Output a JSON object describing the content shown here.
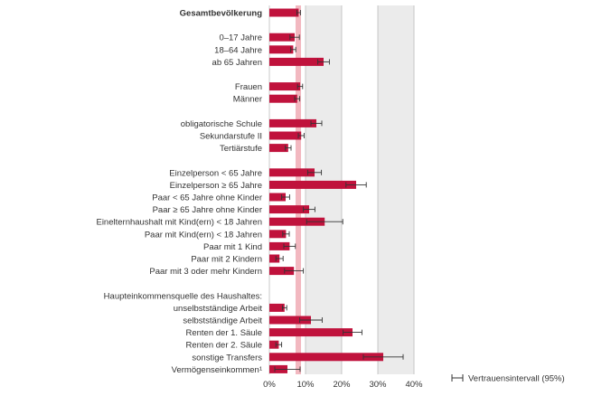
{
  "chart_data": {
    "type": "bar",
    "orientation": "horizontal",
    "unit": "%",
    "xlim": [
      0,
      40
    ],
    "x_ticks": [
      "0%",
      "10%",
      "20%",
      "30%",
      "40%"
    ],
    "x_tick_values": [
      0,
      10,
      20,
      30,
      40
    ],
    "reference_line_value": 8,
    "grid": true,
    "bar_color": "#c0123c",
    "reference_band_color": "#f2b8c0",
    "background_band_color": "#ebebeb",
    "legend": {
      "label": "Vertrauensintervall (95%)",
      "placement": "bottom-right"
    },
    "rows": [
      {
        "kind": "bar",
        "label": "Gesamtbevölkerung",
        "bold": true,
        "value": 8.1,
        "ci": [
          7.6,
          8.6
        ]
      },
      {
        "kind": "gap"
      },
      {
        "kind": "bar",
        "label": "0–17 Jahre",
        "value": 7.0,
        "ci": [
          5.7,
          8.3
        ]
      },
      {
        "kind": "bar",
        "label": "18–64 Jahre",
        "value": 6.6,
        "ci": [
          5.9,
          7.3
        ]
      },
      {
        "kind": "bar",
        "label": "ab 65 Jahren",
        "value": 15.0,
        "ci": [
          13.4,
          16.6
        ]
      },
      {
        "kind": "gap"
      },
      {
        "kind": "bar",
        "label": "Frauen",
        "value": 8.5,
        "ci": [
          7.8,
          9.2
        ]
      },
      {
        "kind": "bar",
        "label": "Männer",
        "value": 7.7,
        "ci": [
          7.0,
          8.4
        ]
      },
      {
        "kind": "gap"
      },
      {
        "kind": "bar",
        "label": "obligatorische Schule",
        "value": 13.0,
        "ci": [
          11.5,
          14.5
        ]
      },
      {
        "kind": "bar",
        "label": "Sekundarstufe II",
        "value": 8.8,
        "ci": [
          8.0,
          9.6
        ]
      },
      {
        "kind": "bar",
        "label": "Tertiärstufe",
        "value": 5.2,
        "ci": [
          4.4,
          6.0
        ]
      },
      {
        "kind": "gap"
      },
      {
        "kind": "bar",
        "label": "Einzelperson < 65 Jahre",
        "value": 12.5,
        "ci": [
          10.6,
          14.4
        ]
      },
      {
        "kind": "bar",
        "label": "Einzelperson ≥ 65 Jahre",
        "value": 24.0,
        "ci": [
          21.2,
          26.8
        ]
      },
      {
        "kind": "bar",
        "label": "Paar < 65 Jahre ohne Kinder",
        "value": 4.5,
        "ci": [
          3.4,
          5.6
        ]
      },
      {
        "kind": "bar",
        "label": "Paar ≥ 65 Jahre ohne Kinder",
        "value": 11.0,
        "ci": [
          9.4,
          12.6
        ]
      },
      {
        "kind": "bar",
        "label": "Einelternhaushalt mit Kind(ern) < 18 Jahren",
        "value": 15.3,
        "ci": [
          10.3,
          20.3
        ]
      },
      {
        "kind": "bar",
        "label": "Paar mit Kind(ern) < 18 Jahren",
        "value": 4.6,
        "ci": [
          3.7,
          5.5
        ]
      },
      {
        "kind": "bar",
        "label": "Paar mit 1 Kind",
        "value": 5.6,
        "ci": [
          4.0,
          7.2
        ]
      },
      {
        "kind": "bar",
        "label": "Paar mit 2 Kindern",
        "value": 2.8,
        "ci": [
          1.8,
          3.8
        ]
      },
      {
        "kind": "bar",
        "label": "Paar mit 3 oder mehr Kindern",
        "value": 6.8,
        "ci": [
          4.2,
          9.4
        ]
      },
      {
        "kind": "gap"
      },
      {
        "kind": "text",
        "label": "Haupteinkommensquelle des Haushaltes:"
      },
      {
        "kind": "bar",
        "label": "unselbstständige Arbeit",
        "value": 4.2,
        "ci": [
          3.6,
          4.8
        ]
      },
      {
        "kind": "bar",
        "label": "selbstständige Arbeit",
        "value": 11.5,
        "ci": [
          8.4,
          14.6
        ]
      },
      {
        "kind": "bar",
        "label": "Renten der 1. Säule",
        "value": 23.0,
        "ci": [
          20.4,
          25.6
        ]
      },
      {
        "kind": "bar",
        "label": "Renten der 2. Säule",
        "value": 2.6,
        "ci": [
          1.8,
          3.4
        ]
      },
      {
        "kind": "bar",
        "label": "sonstige Transfers",
        "value": 31.5,
        "ci": [
          26.0,
          37.0
        ]
      },
      {
        "kind": "bar",
        "label": "Vermögenseinkommen¹",
        "value": 5.0,
        "ci": [
          1.5,
          8.5
        ]
      }
    ]
  }
}
